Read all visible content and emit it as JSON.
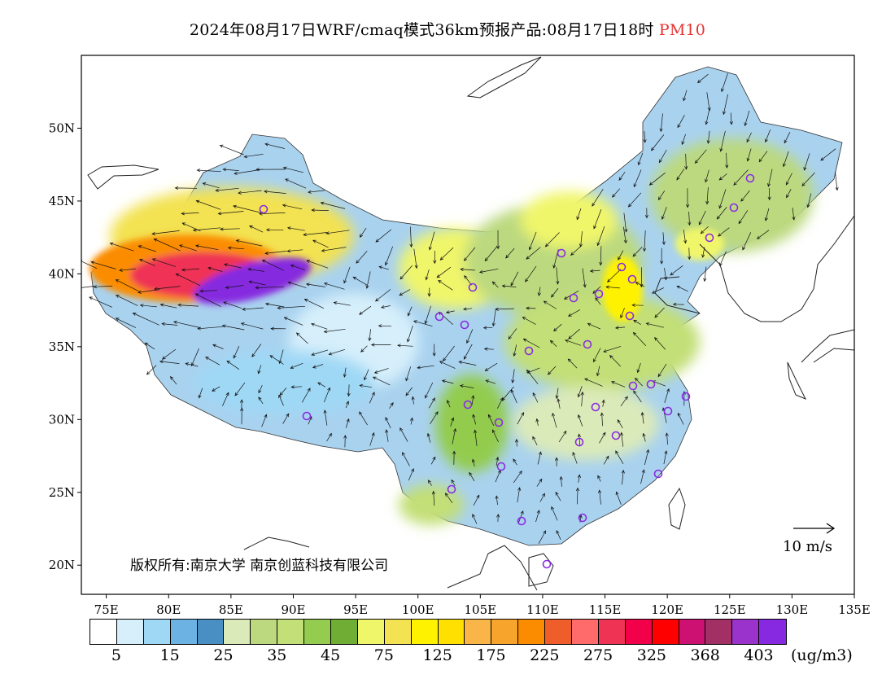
{
  "title": {
    "main": "2024年08月17日WRF/cmaq模式36km预报产品:08月17日18时",
    "variable": "PM10",
    "variable_color": "#e83030"
  },
  "map": {
    "lon_range": [
      73,
      135
    ],
    "lat_range": [
      18,
      55
    ],
    "lon_ticks": [
      "75E",
      "80E",
      "85E",
      "90E",
      "95E",
      "100E",
      "105E",
      "110E",
      "115E",
      "120E",
      "125E",
      "130E",
      "135E"
    ],
    "lat_ticks": [
      "20N",
      "25N",
      "30N",
      "35N",
      "40N",
      "45N",
      "50N"
    ],
    "copyright": "版权所有:南京大学 南京创蓝科技有限公司",
    "wind_reference": "10 m/s",
    "station_marker_color": "#8a2be2"
  },
  "colorbar": {
    "colors": [
      "#ffffff",
      "#d6effb",
      "#9fd8f5",
      "#6cb3e3",
      "#4a8fc4",
      "#dbeab9",
      "#bcd97f",
      "#c3df77",
      "#93cc4e",
      "#6fad34",
      "#f0f66a",
      "#f3e251",
      "#fff200",
      "#ffe000",
      "#f9b548",
      "#f7a42c",
      "#fb8c00",
      "#ef5e2a",
      "#ff6a6a",
      "#ef3355",
      "#f2004a",
      "#fe0000",
      "#cc1173",
      "#a33065",
      "#9933cc",
      "#8629e0"
    ],
    "labels": [
      "5",
      "15",
      "25",
      "35",
      "45",
      "75",
      "125",
      "175",
      "225",
      "275",
      "325",
      "368",
      "403"
    ],
    "unit": "(ug/m3)"
  }
}
